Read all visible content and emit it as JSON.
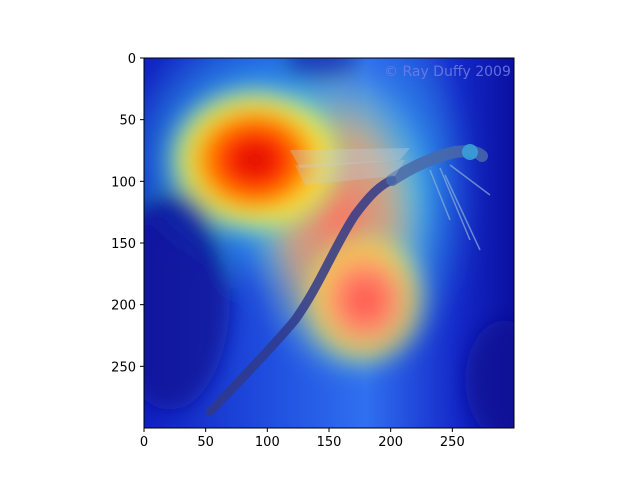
{
  "chart_data": {
    "type": "heatmap",
    "title": "",
    "xlabel": "",
    "ylabel": "",
    "xlim": [
      0,
      300
    ],
    "ylim": [
      300,
      0
    ],
    "x_ticks": [
      0,
      50,
      100,
      150,
      200,
      250
    ],
    "y_ticks": [
      0,
      50,
      100,
      150,
      200,
      250
    ],
    "grid": false,
    "colormap": "jet",
    "image_content": "dragonfly",
    "watermark": "© Ray Duffy 2009",
    "hotspots": [
      {
        "x": 90,
        "y": 85,
        "intensity": 1.0
      },
      {
        "x": 175,
        "y": 190,
        "intensity": 0.85
      },
      {
        "x": 160,
        "y": 120,
        "intensity": 0.75
      }
    ]
  }
}
